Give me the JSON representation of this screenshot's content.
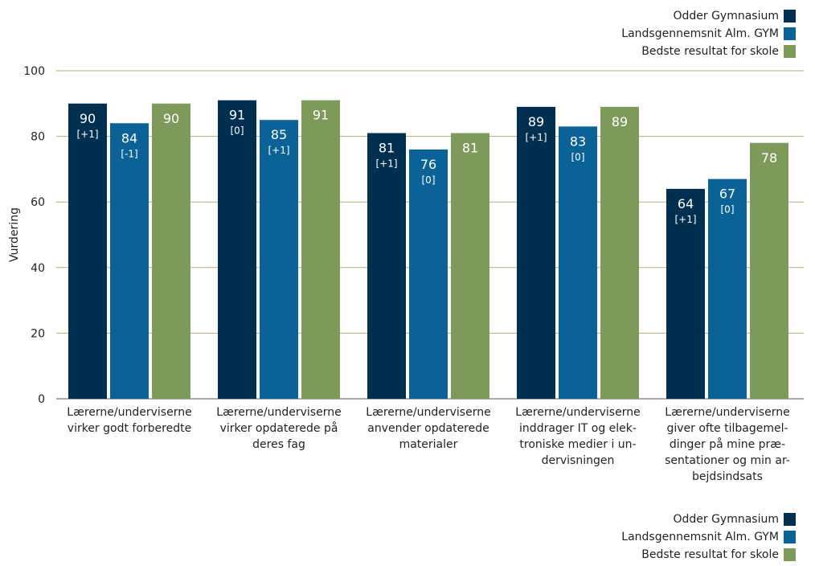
{
  "chart_data": {
    "type": "bar",
    "ylabel": "Vurdering",
    "ylim": [
      0,
      100
    ],
    "yticks": [
      0,
      20,
      40,
      60,
      80,
      100
    ],
    "grid": true,
    "legend_placement": "top-right and bottom-right",
    "categories": [
      [
        "Lærerne/underviserne",
        "virker godt forberedte"
      ],
      [
        "Lærerne/underviserne",
        "virker opdaterede på",
        "deres fag"
      ],
      [
        "Lærerne/underviserne",
        "anvender opdaterede",
        "materialer"
      ],
      [
        "Lærerne/underviserne",
        "inddrager IT og elek-",
        "troniske medier i un-",
        "dervisningen"
      ],
      [
        "Lærerne/underviserne",
        "giver ofte tilbagemel-",
        "dinger på mine præ-",
        "sentationer og min ar-",
        "bejdsindsats"
      ]
    ],
    "series": [
      {
        "name": "Odder Gymnasium",
        "color": "#002f4f",
        "values": [
          90,
          91,
          81,
          89,
          64
        ],
        "labels": [
          "90",
          "91",
          "81",
          "89",
          "64"
        ],
        "changes": [
          "[+1]",
          "[0]",
          "[+1]",
          "[+1]",
          "[+1]"
        ]
      },
      {
        "name": "Landsgennemsnit Alm. GYM",
        "color": "#0a6296",
        "values": [
          84,
          85,
          76,
          83,
          67
        ],
        "labels": [
          "84",
          "85",
          "76",
          "83",
          "67"
        ],
        "changes": [
          "[-1]",
          "[+1]",
          "[0]",
          "[0]",
          "[0]"
        ]
      },
      {
        "name": "Bedste resultat for skole",
        "color": "#7d9a5a",
        "values": [
          90,
          91,
          81,
          89,
          78
        ],
        "labels": [
          "90",
          "91",
          "81",
          "89",
          "78"
        ],
        "changes": [
          "",
          "",
          "",
          "",
          ""
        ]
      }
    ]
  }
}
